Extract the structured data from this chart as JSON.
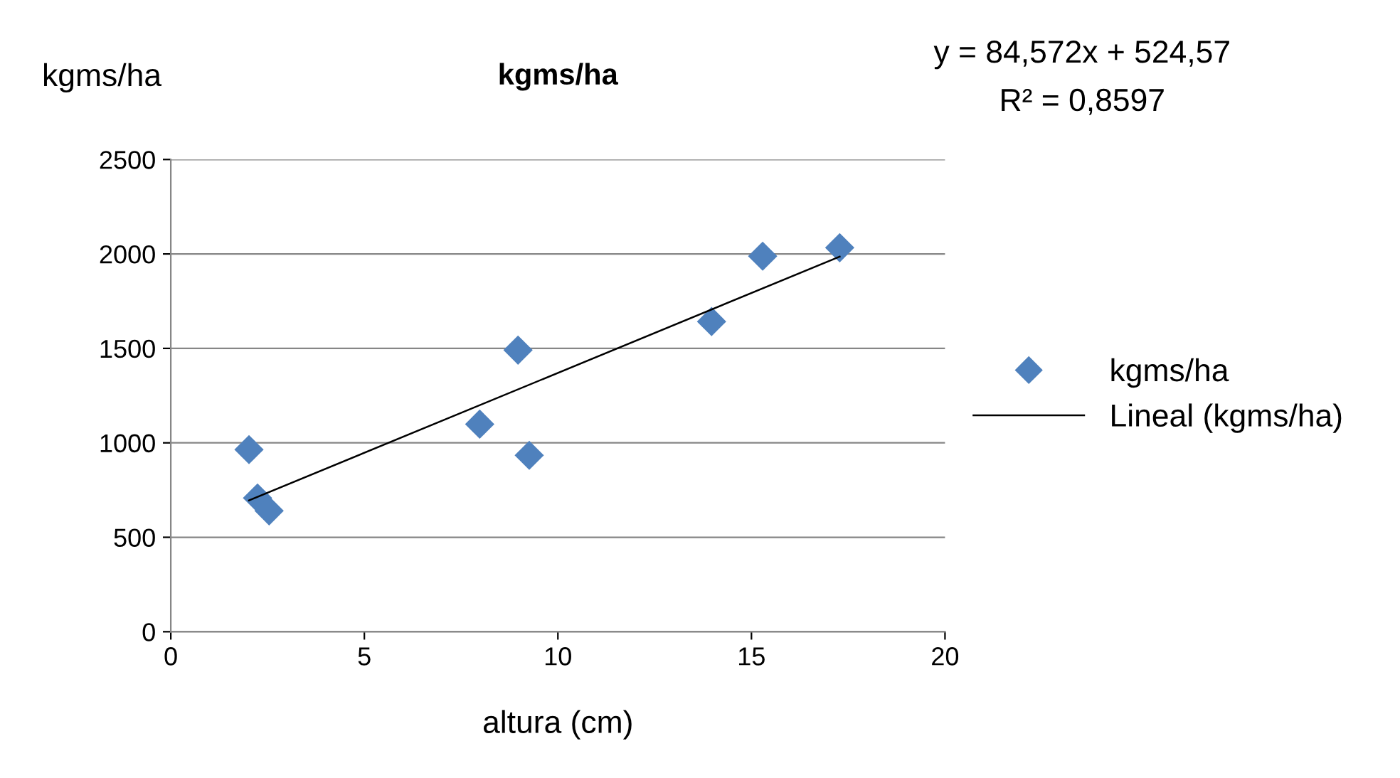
{
  "chart_data": {
    "type": "scatter",
    "title": "kgms/ha",
    "ylabel": "kgms/ha",
    "xlabel": "altura (cm)",
    "annotations": [
      "y = 84,572x + 524,57",
      "R² = 0,8597"
    ],
    "series": [
      {
        "name": "kgms/ha",
        "color": "#4f81bd",
        "marker": "diamond",
        "x": [
          2.02,
          2.24,
          2.54,
          7.98,
          8.97,
          9.26,
          13.97,
          15.29,
          17.28
        ],
        "values": [
          964,
          708,
          640,
          1099,
          1491,
          934,
          1642,
          1988,
          2033
        ]
      },
      {
        "name": "Lineal (kgms/ha)",
        "type": "line",
        "color": "#000000",
        "marker": "none",
        "x": [
          2.02,
          17.28
        ],
        "values": [
          695,
          1986
        ]
      }
    ],
    "xlim": [
      0,
      20
    ],
    "xticks": [
      0,
      5,
      10,
      15,
      20
    ],
    "ylim": [
      0,
      2500
    ],
    "yticks": [
      0,
      500,
      1000,
      1500,
      2000,
      2500
    ],
    "grid": "y",
    "legend": "right"
  }
}
